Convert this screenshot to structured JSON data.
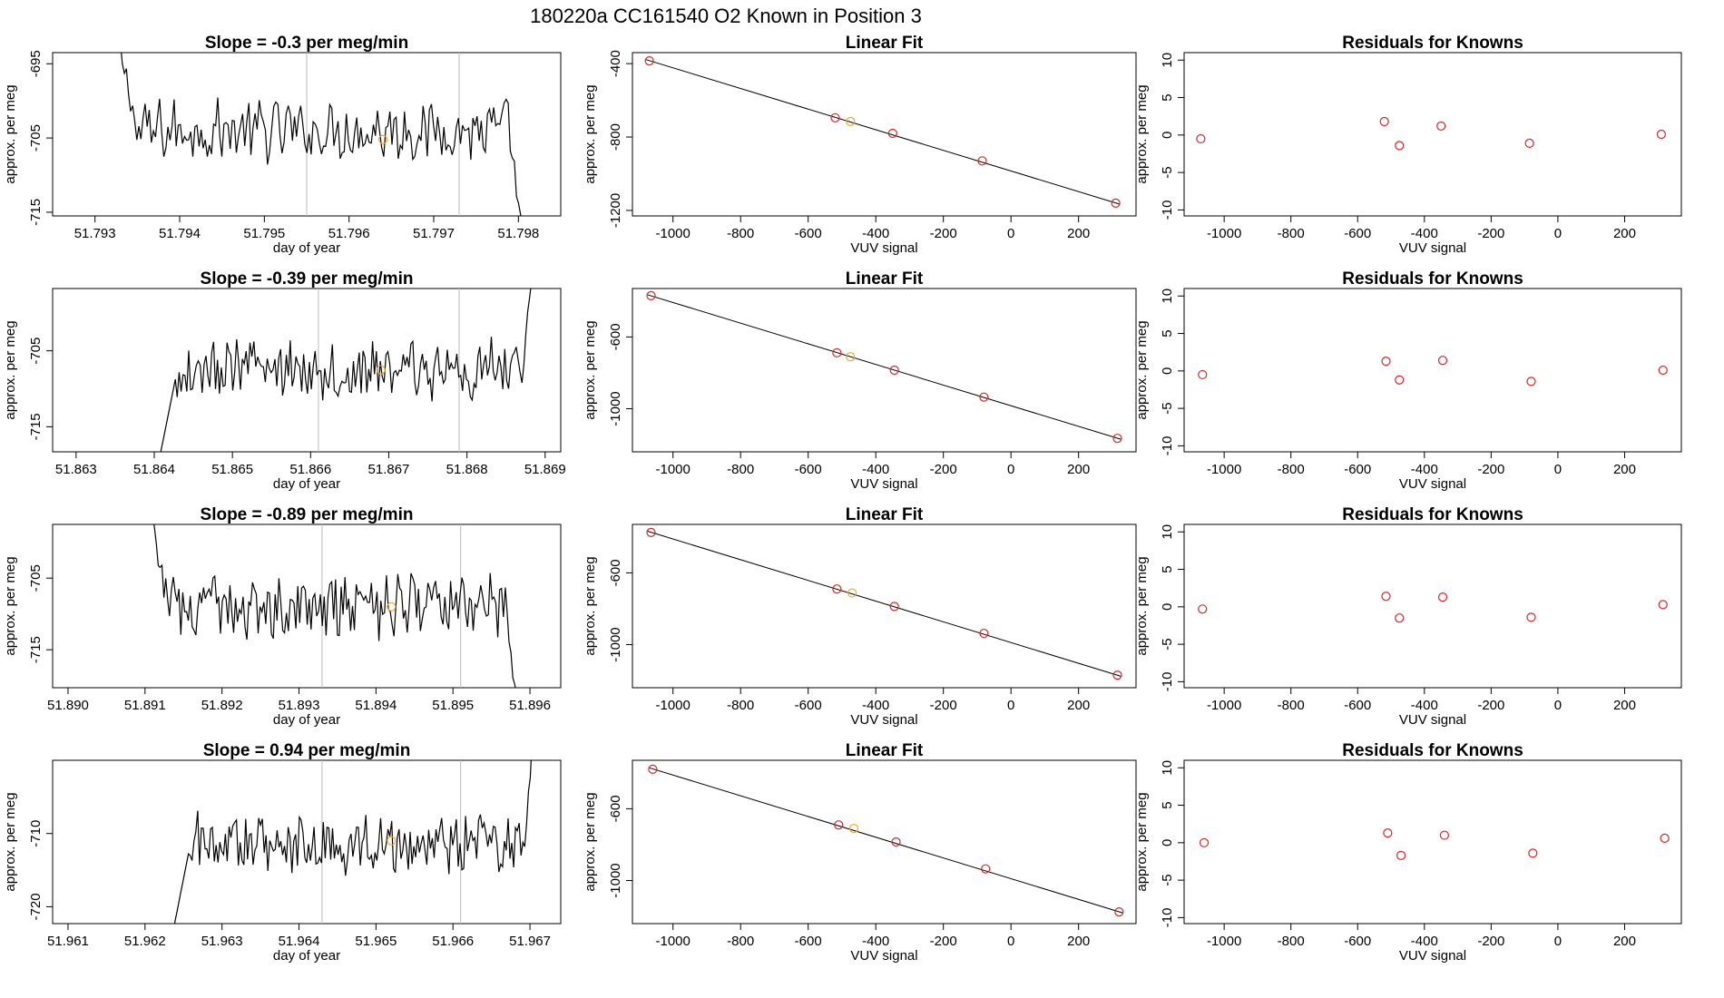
{
  "suptitle": "180220a      CC161540   O2 Known in Position  3",
  "colors": {
    "line": "#000000",
    "marker": "#d62728",
    "highlight": "#f5a623",
    "vline": "#bbbbbb",
    "frame": "#000000"
  },
  "labels": {
    "x_time": "day of year",
    "y_common": "approx. per meg",
    "x_vuv": "VUV signal",
    "linear_title": "Linear Fit",
    "resid_title": "Residuals for Knowns"
  },
  "chart_data": [
    {
      "type": "line",
      "title": "Slope =  -0.3  per meg/min",
      "xlabel": "day of year",
      "ylabel": "approx. per meg",
      "xlim": [
        51.7925,
        51.7985
      ],
      "ylim": [
        -715.5,
        -693.5
      ],
      "xticks": [
        "51.793",
        "51.794",
        "51.795",
        "51.796",
        "51.797",
        "51.798"
      ],
      "yticks": [
        "-695",
        "-705",
        "-715"
      ],
      "vlines": [
        51.7955,
        51.7973
      ],
      "x_start": 51.7932,
      "x_end": 51.7981,
      "level": -704.0,
      "highlight": {
        "x": 51.7964,
        "y": -705.2
      }
    },
    {
      "type": "scatter",
      "title": "Linear Fit",
      "xlabel": "VUV signal",
      "ylabel": "approx. per meg",
      "xlim": [
        -1120,
        370
      ],
      "ylim": [
        -1230,
        -340
      ],
      "xticks": [
        "-1000",
        "-800",
        "-600",
        "-400",
        "-200",
        "0",
        "200"
      ],
      "yticks": [
        "-400",
        "-800",
        "-1200"
      ],
      "points": [
        [
          -1070,
          -385
        ],
        [
          -520,
          -695
        ],
        [
          -475,
          -715
        ],
        [
          -350,
          -780
        ],
        [
          -85,
          -930
        ],
        [
          310,
          -1160
        ]
      ],
      "highlight_index": 2,
      "fit_line": [
        [
          -1080,
          -378
        ],
        [
          320,
          -1165
        ]
      ]
    },
    {
      "type": "scatter",
      "title": "Residuals for Knowns",
      "xlabel": "VUV signal",
      "ylabel": "approx. per meg",
      "xlim": [
        -1120,
        370
      ],
      "ylim": [
        -10.8,
        11
      ],
      "xticks": [
        "-1000",
        "-800",
        "-600",
        "-400",
        "-200",
        "0",
        "200"
      ],
      "yticks": [
        "-10",
        "-5",
        "0",
        "5",
        "10"
      ],
      "points": [
        [
          -1070,
          -0.5
        ],
        [
          -520,
          1.8
        ],
        [
          -475,
          -1.4
        ],
        [
          -350,
          1.2
        ],
        [
          -85,
          -1.1
        ],
        [
          310,
          0.1
        ]
      ]
    },
    {
      "type": "line",
      "title": "Slope =  -0.39  per meg/min",
      "xlabel": "day of year",
      "ylabel": "approx. per meg",
      "xlim": [
        51.8627,
        51.8692
      ],
      "ylim": [
        -718.3,
        -696.8
      ],
      "xticks": [
        "51.863",
        "51.864",
        "51.865",
        "51.866",
        "51.867",
        "51.868",
        "51.869"
      ],
      "yticks": [
        "-705",
        "-715"
      ],
      "vlines": [
        51.8661,
        51.8679
      ],
      "x_start": 51.864,
      "x_end": 51.8689,
      "level": -707.5,
      "highlight": {
        "x": 51.8669,
        "y": -707.5
      }
    },
    {
      "type": "scatter",
      "title": "Linear Fit",
      "xlabel": "VUV signal",
      "ylabel": "approx. per meg",
      "xlim": [
        -1120,
        370
      ],
      "ylim": [
        -1240,
        -330
      ],
      "xticks": [
        "-1000",
        "-800",
        "-600",
        "-400",
        "-200",
        "0",
        "200"
      ],
      "yticks": [
        "-600",
        "-1000"
      ],
      "points": [
        [
          -1065,
          -370
        ],
        [
          -515,
          -688
        ],
        [
          -475,
          -710
        ],
        [
          -345,
          -785
        ],
        [
          -80,
          -935
        ],
        [
          315,
          -1165
        ]
      ],
      "highlight_index": 2,
      "fit_line": [
        [
          -1075,
          -365
        ],
        [
          325,
          -1170
        ]
      ]
    },
    {
      "type": "scatter",
      "title": "Residuals for Knowns",
      "xlabel": "VUV signal",
      "ylabel": "approx. per meg",
      "xlim": [
        -1120,
        370
      ],
      "ylim": [
        -10.8,
        11
      ],
      "xticks": [
        "-1000",
        "-800",
        "-600",
        "-400",
        "-200",
        "0",
        "200"
      ],
      "yticks": [
        "-10",
        "-5",
        "0",
        "5",
        "10"
      ],
      "points": [
        [
          -1065,
          -0.5
        ],
        [
          -515,
          1.3
        ],
        [
          -475,
          -1.2
        ],
        [
          -345,
          1.4
        ],
        [
          -80,
          -1.4
        ],
        [
          315,
          0.1
        ]
      ]
    },
    {
      "type": "line",
      "title": "Slope =  -0.89  per meg/min",
      "xlabel": "day of year",
      "ylabel": "approx. per meg",
      "xlim": [
        51.8898,
        51.8964
      ],
      "ylim": [
        -720.3,
        -697.5
      ],
      "xticks": [
        "51.890",
        "51.891",
        "51.892",
        "51.893",
        "51.894",
        "51.895",
        "51.896"
      ],
      "yticks": [
        "-705",
        "-715"
      ],
      "vlines": [
        51.8933,
        51.8951
      ],
      "x_start": 51.891,
      "x_end": 51.8959,
      "level": -709.0,
      "highlight": {
        "x": 51.8942,
        "y": -709.0
      }
    },
    {
      "type": "scatter",
      "title": "Linear Fit",
      "xlabel": "VUV signal",
      "ylabel": "approx. per meg",
      "xlim": [
        -1120,
        370
      ],
      "ylim": [
        -1240,
        -330
      ],
      "xticks": [
        "-1000",
        "-800",
        "-600",
        "-400",
        "-200",
        "0",
        "200"
      ],
      "yticks": [
        "-600",
        "-1000"
      ],
      "points": [
        [
          -1065,
          -375
        ],
        [
          -515,
          -690
        ],
        [
          -470,
          -712
        ],
        [
          -345,
          -787
        ],
        [
          -80,
          -937
        ],
        [
          315,
          -1170
        ]
      ],
      "highlight_index": 2,
      "fit_line": [
        [
          -1075,
          -368
        ],
        [
          325,
          -1176
        ]
      ]
    },
    {
      "type": "scatter",
      "title": "Residuals for Knowns",
      "xlabel": "VUV signal",
      "ylabel": "approx. per meg",
      "xlim": [
        -1120,
        370
      ],
      "ylim": [
        -10.8,
        11
      ],
      "xticks": [
        "-1000",
        "-800",
        "-600",
        "-400",
        "-200",
        "0",
        "200"
      ],
      "yticks": [
        "-10",
        "-5",
        "0",
        "5",
        "10"
      ],
      "points": [
        [
          -1065,
          -0.3
        ],
        [
          -515,
          1.4
        ],
        [
          -475,
          -1.5
        ],
        [
          -345,
          1.3
        ],
        [
          -80,
          -1.4
        ],
        [
          315,
          0.3
        ]
      ]
    },
    {
      "type": "line",
      "title": "Slope =  0.94  per meg/min",
      "xlabel": "day of year",
      "ylabel": "approx. per meg",
      "xlim": [
        51.9608,
        51.9674
      ],
      "ylim": [
        -722.3,
        -700
      ],
      "xticks": [
        "51.961",
        "51.962",
        "51.963",
        "51.964",
        "51.965",
        "51.966",
        "51.967"
      ],
      "yticks": [
        "-710",
        "-720"
      ],
      "vlines": [
        51.9643,
        51.9661
      ],
      "x_start": 51.9623,
      "x_end": 51.9671,
      "level": -711.5,
      "highlight": {
        "x": 51.9652,
        "y": -711.0
      }
    },
    {
      "type": "scatter",
      "title": "Linear Fit",
      "xlabel": "VUV signal",
      "ylabel": "approx. per meg",
      "xlim": [
        -1120,
        370
      ],
      "ylim": [
        -1240,
        -330
      ],
      "xticks": [
        "-1000",
        "-800",
        "-600",
        "-400",
        "-200",
        "0",
        "200"
      ],
      "yticks": [
        "-600",
        "-1000"
      ],
      "points": [
        [
          -1060,
          -380
        ],
        [
          -510,
          -690
        ],
        [
          -465,
          -710
        ],
        [
          -340,
          -785
        ],
        [
          -75,
          -935
        ],
        [
          320,
          -1175
        ]
      ],
      "highlight_index": 2,
      "fit_line": [
        [
          -1070,
          -372
        ],
        [
          330,
          -1180
        ]
      ]
    },
    {
      "type": "scatter",
      "title": "Residuals for Knowns",
      "xlabel": "VUV signal",
      "ylabel": "approx. per meg",
      "xlim": [
        -1120,
        370
      ],
      "ylim": [
        -10.8,
        11
      ],
      "xticks": [
        "-1000",
        "-800",
        "-600",
        "-400",
        "-200",
        "0",
        "200"
      ],
      "yticks": [
        "-10",
        "-5",
        "0",
        "5",
        "10"
      ],
      "points": [
        [
          -1060,
          0.0
        ],
        [
          -510,
          1.3
        ],
        [
          -470,
          -1.7
        ],
        [
          -340,
          1.0
        ],
        [
          -75,
          -1.4
        ],
        [
          320,
          0.6
        ]
      ]
    }
  ]
}
